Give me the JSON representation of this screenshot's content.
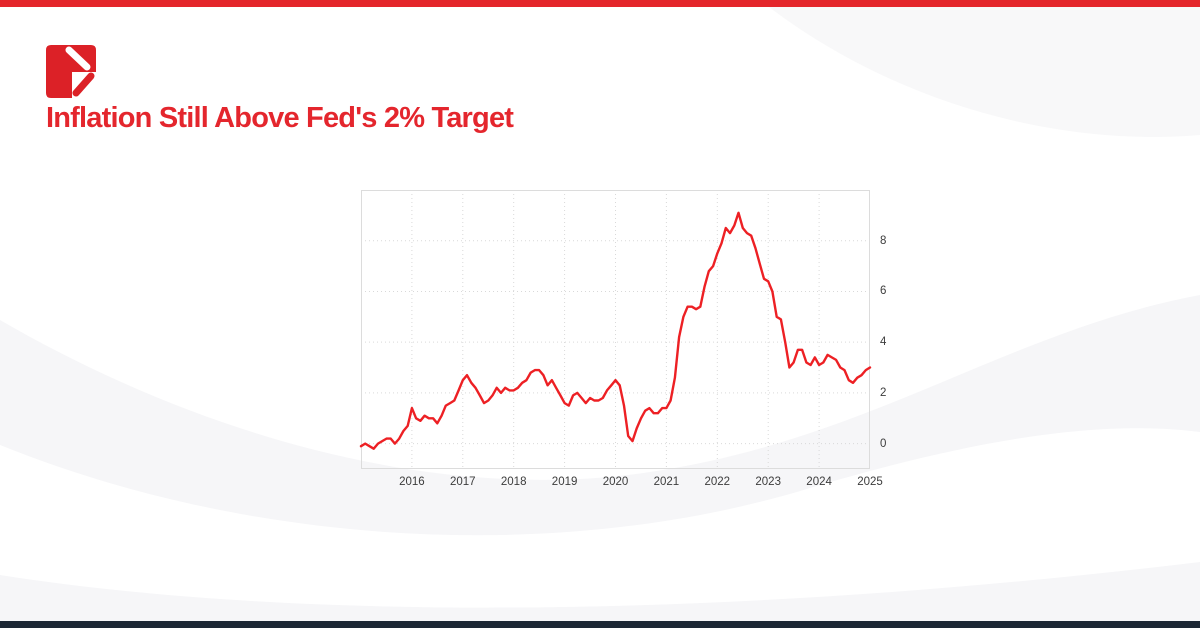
{
  "header": {
    "title": "Inflation Still Above Fed's 2% Target",
    "title_color": "#e4262d"
  },
  "brand": {
    "logo_name": "brand-logo",
    "logo_color": "#dc2127"
  },
  "accents": {
    "top_bar_color": "#e4262b",
    "bottom_bar_color": "#1c2734",
    "swirl_color": "#f3f3f5"
  },
  "chart_data": {
    "type": "line",
    "title": "Inflation Still Above Fed's 2% Target",
    "xlabel": "",
    "ylabel": "",
    "legend": "none",
    "grid": "dotted",
    "grid_color": "#d9d9d9",
    "frame_color": "#dcdcdc",
    "line_color": "#ed2024",
    "line_width": 2.4,
    "xlim": [
      2015.0,
      2025.0
    ],
    "ylim": [
      -1,
      10
    ],
    "x_tick_labels": [
      "2016",
      "2017",
      "2018",
      "2019",
      "2020",
      "2021",
      "2022",
      "2023",
      "2024",
      "2025"
    ],
    "y_ticks": [
      0,
      2,
      4,
      6,
      8
    ],
    "y_tick_labels": [
      "0",
      "2",
      "4",
      "6",
      "8"
    ],
    "series": [
      {
        "name": "inflation_yoy_percent",
        "frequency": "monthly",
        "start": "2015-01",
        "end": "2025-01",
        "values": [
          -0.1,
          0.0,
          -0.1,
          -0.2,
          0.0,
          0.1,
          0.2,
          0.2,
          0.0,
          0.2,
          0.5,
          0.7,
          1.4,
          1.0,
          0.9,
          1.1,
          1.0,
          1.0,
          0.8,
          1.1,
          1.5,
          1.6,
          1.7,
          2.1,
          2.5,
          2.7,
          2.4,
          2.2,
          1.9,
          1.6,
          1.7,
          1.9,
          2.2,
          2.0,
          2.2,
          2.1,
          2.1,
          2.2,
          2.4,
          2.5,
          2.8,
          2.9,
          2.9,
          2.7,
          2.3,
          2.5,
          2.2,
          1.9,
          1.6,
          1.5,
          1.9,
          2.0,
          1.8,
          1.6,
          1.8,
          1.7,
          1.7,
          1.8,
          2.1,
          2.3,
          2.5,
          2.3,
          1.5,
          0.3,
          0.1,
          0.6,
          1.0,
          1.3,
          1.4,
          1.2,
          1.2,
          1.4,
          1.4,
          1.7,
          2.6,
          4.2,
          5.0,
          5.4,
          5.4,
          5.3,
          5.4,
          6.2,
          6.8,
          7.0,
          7.5,
          7.9,
          8.5,
          8.3,
          8.6,
          9.1,
          8.5,
          8.3,
          8.2,
          7.7,
          7.1,
          6.5,
          6.4,
          6.0,
          5.0,
          4.9,
          4.0,
          3.0,
          3.2,
          3.7,
          3.7,
          3.2,
          3.1,
          3.4,
          3.1,
          3.2,
          3.5,
          3.4,
          3.3,
          3.0,
          2.9,
          2.5,
          2.4,
          2.6,
          2.7,
          2.9,
          3.0
        ]
      }
    ]
  }
}
